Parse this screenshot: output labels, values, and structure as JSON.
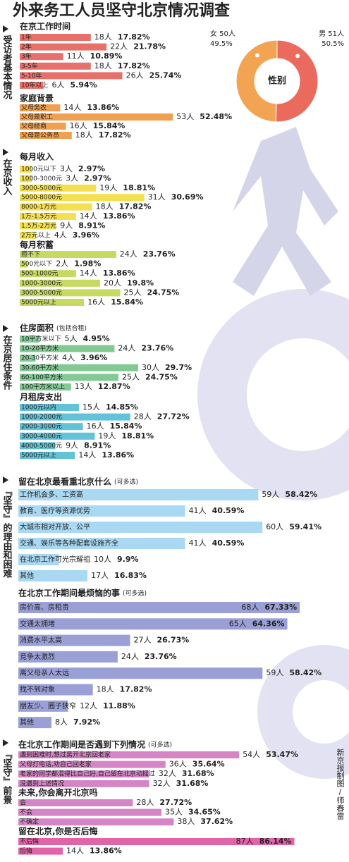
{
  "title": "外来务工人员坚守北京情况调查",
  "sections": [
    {
      "label": "受访者基本情况"
    },
    {
      "label": "在京收入"
    },
    {
      "label": "在京居住条件"
    },
    {
      "label": "『坚守』的理由和困难"
    },
    {
      "label": "『坚守』前景"
    }
  ],
  "credit": "新京报制图/师春雷",
  "chart_data": [
    {
      "type": "bar",
      "title": "在京工作时间",
      "color": "#e8706a",
      "categories": [
        "1年",
        "2年",
        "3年",
        "3-5年",
        "5-10年",
        "10年以上"
      ],
      "values": [
        18,
        22,
        11,
        18,
        26,
        6
      ],
      "value_labels": [
        "18人",
        "22人",
        "11人",
        "18人",
        "26人",
        "6人"
      ],
      "percent_labels": [
        "17.82%",
        "21.78%",
        "10.89%",
        "17.82%",
        "25.74%",
        "5.94%"
      ]
    },
    {
      "type": "bar",
      "title": "家庭背景",
      "color": "#f0a050",
      "categories": [
        "父母务农",
        "父母是职工",
        "父母经商",
        "父母是公务员"
      ],
      "values": [
        14,
        53,
        16,
        18
      ],
      "value_labels": [
        "14人",
        "53人",
        "16人",
        "18人"
      ],
      "percent_labels": [
        "13.86%",
        "52.48%",
        "15.84%",
        "17.82%"
      ]
    },
    {
      "type": "pie",
      "title": "性别",
      "colors": [
        "#eb6a5e",
        "#f2a452"
      ],
      "categories": [
        "男 51人",
        "女 50人"
      ],
      "values": [
        50.5,
        49.5
      ],
      "value_labels": [
        "50.5%",
        "49.5%"
      ]
    },
    {
      "type": "bar",
      "title": "每月收入",
      "color": "#f3df4f",
      "categories": [
        "1000元以下",
        "1000-3000元",
        "3000-5000元",
        "5000-8000元",
        "8000-1万元",
        "1万-1.5万元",
        "1.5万-2万元",
        "2万元以上"
      ],
      "values": [
        3,
        3,
        19,
        31,
        18,
        14,
        9,
        4
      ],
      "value_labels": [
        "3人",
        "3人",
        "19人",
        "31人",
        "18人",
        "14人",
        "9人",
        "4人"
      ],
      "percent_labels": [
        "2.97%",
        "2.97%",
        "18.81%",
        "30.69%",
        "17.82%",
        "13.86%",
        "8.91%",
        "3.96%"
      ]
    },
    {
      "type": "bar",
      "title": "每月积蓄",
      "color": "#c6da62",
      "categories": [
        "攒不下",
        "500元以下",
        "500-1000元",
        "1000-3000元",
        "3000-5000元",
        "5000元以上"
      ],
      "values": [
        24,
        2,
        14,
        20,
        25,
        16
      ],
      "value_labels": [
        "24人",
        "2人",
        "14人",
        "20人",
        "25人",
        "16人"
      ],
      "percent_labels": [
        "23.76%",
        "1.98%",
        "13.86%",
        "19.8%",
        "24.75%",
        "15.84%"
      ]
    },
    {
      "type": "bar",
      "title": "住房面积",
      "note": "(包括合租)",
      "color": "#82c994",
      "categories": [
        "10平方米以下",
        "10-20平方米",
        "20-30平方米",
        "30-60平方米",
        "60-100平方米",
        "100平方米以上"
      ],
      "values": [
        5,
        24,
        4,
        30,
        25,
        13
      ],
      "value_labels": [
        "5人",
        "24人",
        "4人",
        "30人",
        "25人",
        "13人"
      ],
      "percent_labels": [
        "4.95%",
        "23.76%",
        "3.96%",
        "29.7%",
        "24.75%",
        "12.87%"
      ]
    },
    {
      "type": "bar",
      "title": "月租房支出",
      "color": "#62c2d8",
      "categories": [
        "1000元以内",
        "1000-2000元",
        "2000-3000元",
        "3000-4000元",
        "4000-5000元",
        "5000元以上"
      ],
      "values": [
        15,
        28,
        16,
        19,
        9,
        14
      ],
      "value_labels": [
        "15人",
        "28人",
        "16人",
        "19人",
        "9人",
        "14人"
      ],
      "percent_labels": [
        "14.85%",
        "27.72%",
        "15.84%",
        "18.81%",
        "8.91%",
        "13.86%"
      ]
    },
    {
      "type": "bar",
      "title": "留在北京最看重北京什么",
      "note": "(可多选)",
      "color": "#a9d9f2",
      "categories": [
        "工作机会多、工资高",
        "教育、医疗等资源优势",
        "大城市相对开放、公平",
        "交通、娱乐等各种配套设施齐全",
        "在北京工作可光宗耀祖",
        "其他"
      ],
      "values": [
        59,
        41,
        60,
        41,
        10,
        17
      ],
      "value_labels": [
        "59人",
        "41人",
        "60人",
        "41人",
        "10人",
        "17人"
      ],
      "percent_labels": [
        "58.42%",
        "40.59%",
        "59.41%",
        "40.59%",
        "9.9%",
        "16.83%"
      ]
    },
    {
      "type": "bar",
      "title": "在北京工作期间最烦恼的事",
      "note": "(可多选)",
      "color": "#9aa0d6",
      "categories": [
        "房价高、房租贵",
        "交通太拥堵",
        "消费水平太高",
        "竞争太激烈",
        "离父母亲人太远",
        "找不到对象",
        "朋友少、圈子狭窄",
        "其他"
      ],
      "values": [
        68,
        65,
        27,
        24,
        59,
        18,
        12,
        8
      ],
      "value_labels": [
        "68人",
        "65人",
        "27人",
        "24人",
        "59人",
        "18人",
        "12人",
        "8人"
      ],
      "percent_labels": [
        "67.33%",
        "64.36%",
        "26.73%",
        "23.76%",
        "58.42%",
        "17.82%",
        "11.88%",
        "7.92%"
      ]
    },
    {
      "type": "bar",
      "title": "在北京工作期间是否遇到下列情况",
      "note": "(可多选)",
      "color": "#d585c6",
      "categories": [
        "遇到困难时,想过离开北京回老家",
        "父母打电话,劝自己回老家",
        "老家的同学都混得比自己好,自己留在北京动摇过",
        "没遇到上述情况"
      ],
      "values": [
        54,
        36,
        32,
        32
      ],
      "value_labels": [
        "54人",
        "36人",
        "32人",
        "32人"
      ],
      "percent_labels": [
        "53.47%",
        "35.64%",
        "31.68%",
        "31.68%"
      ]
    },
    {
      "type": "bar",
      "title": "未来,你会离开北京吗",
      "color": "#d585c6",
      "categories": [
        "会",
        "不会",
        "不确定"
      ],
      "values": [
        28,
        35,
        38
      ],
      "value_labels": [
        "28人",
        "35人",
        "38人"
      ],
      "percent_labels": [
        "27.72%",
        "34.65%",
        "37.62%"
      ]
    },
    {
      "type": "bar",
      "title": "留在北京,你是否后悔",
      "color": "#e264a6",
      "categories": [
        "不后悔",
        "后悔"
      ],
      "values": [
        87,
        14
      ],
      "value_labels": [
        "87人",
        "14人"
      ],
      "percent_labels": [
        "86.14%",
        "13.86%"
      ]
    }
  ]
}
